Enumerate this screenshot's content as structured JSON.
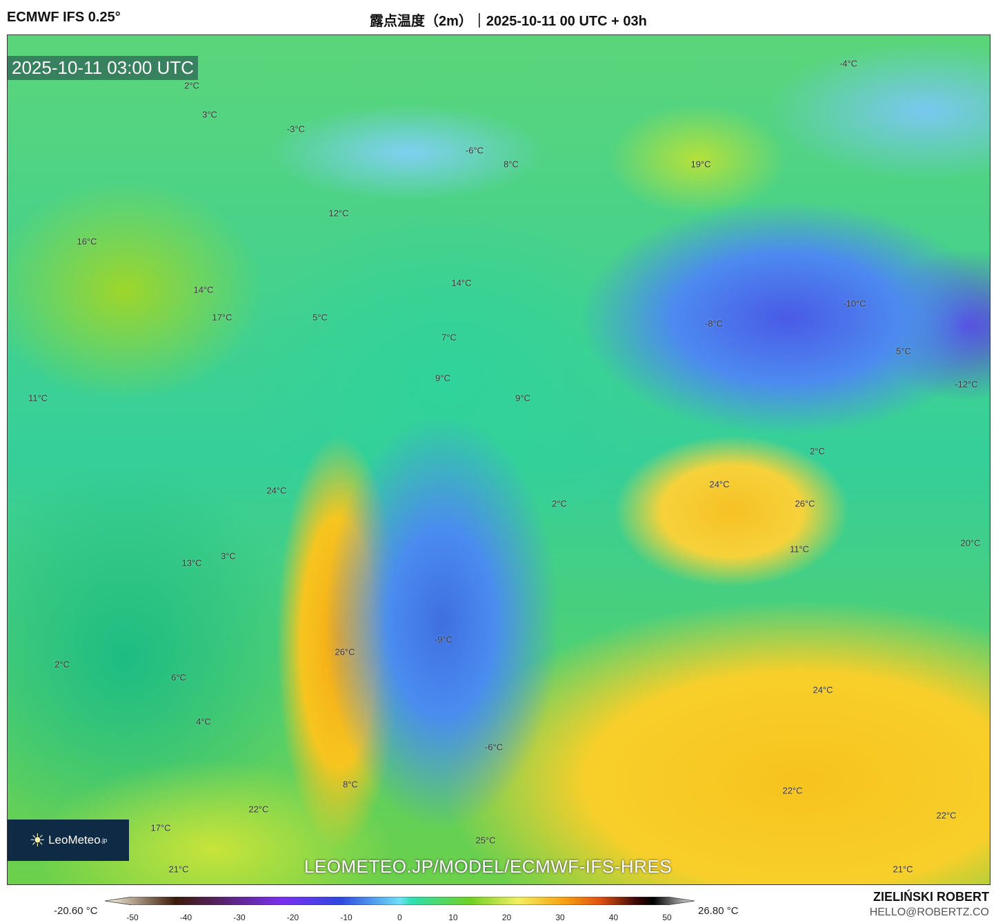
{
  "header": {
    "model": "ECMWF IFS 0.25°",
    "title": "露点温度（2m）｜2025-10-11 00 UTC + 03h"
  },
  "map": {
    "valid_time": "2025-10-11 03:00 UTC",
    "url": "LEOMETEO.JP/MODEL/ECMWF-IFS-HRES",
    "labels": [
      "2°C",
      "3°C",
      "-3°C",
      "-6°C",
      "8°C",
      "19°C",
      "-4°C",
      "12°C",
      "16°C",
      "14°C",
      "14°C",
      "17°C",
      "5°C",
      "7°C",
      "-10°C",
      "-8°C",
      "5°C",
      "9°C",
      "9°C",
      "-12°C",
      "11°C",
      "2°C",
      "24°C",
      "24°C",
      "26°C",
      "2°C",
      "20°C",
      "11°C",
      "3°C",
      "13°C",
      "-9°C",
      "26°C",
      "2°C",
      "6°C",
      "24°C",
      "4°C",
      "-6°C",
      "8°C",
      "22°C",
      "22°C",
      "22°C",
      "17°C",
      "25°C",
      "21°C",
      "21°C"
    ]
  },
  "logo": {
    "name": "LeoMeteo",
    "suffix": ".jp"
  },
  "colorbar": {
    "min_label": "-20.60 °C",
    "max_label": "26.80 °C",
    "ticks": [
      "-50",
      "-40",
      "-30",
      "-20",
      "-10",
      "0",
      "10",
      "20",
      "30",
      "40",
      "50"
    ],
    "range": [
      -54,
      54
    ]
  },
  "credit": {
    "author": "ZIELIŃSKI ROBERT",
    "email": "HELLO@ROBERTZ.CO"
  }
}
